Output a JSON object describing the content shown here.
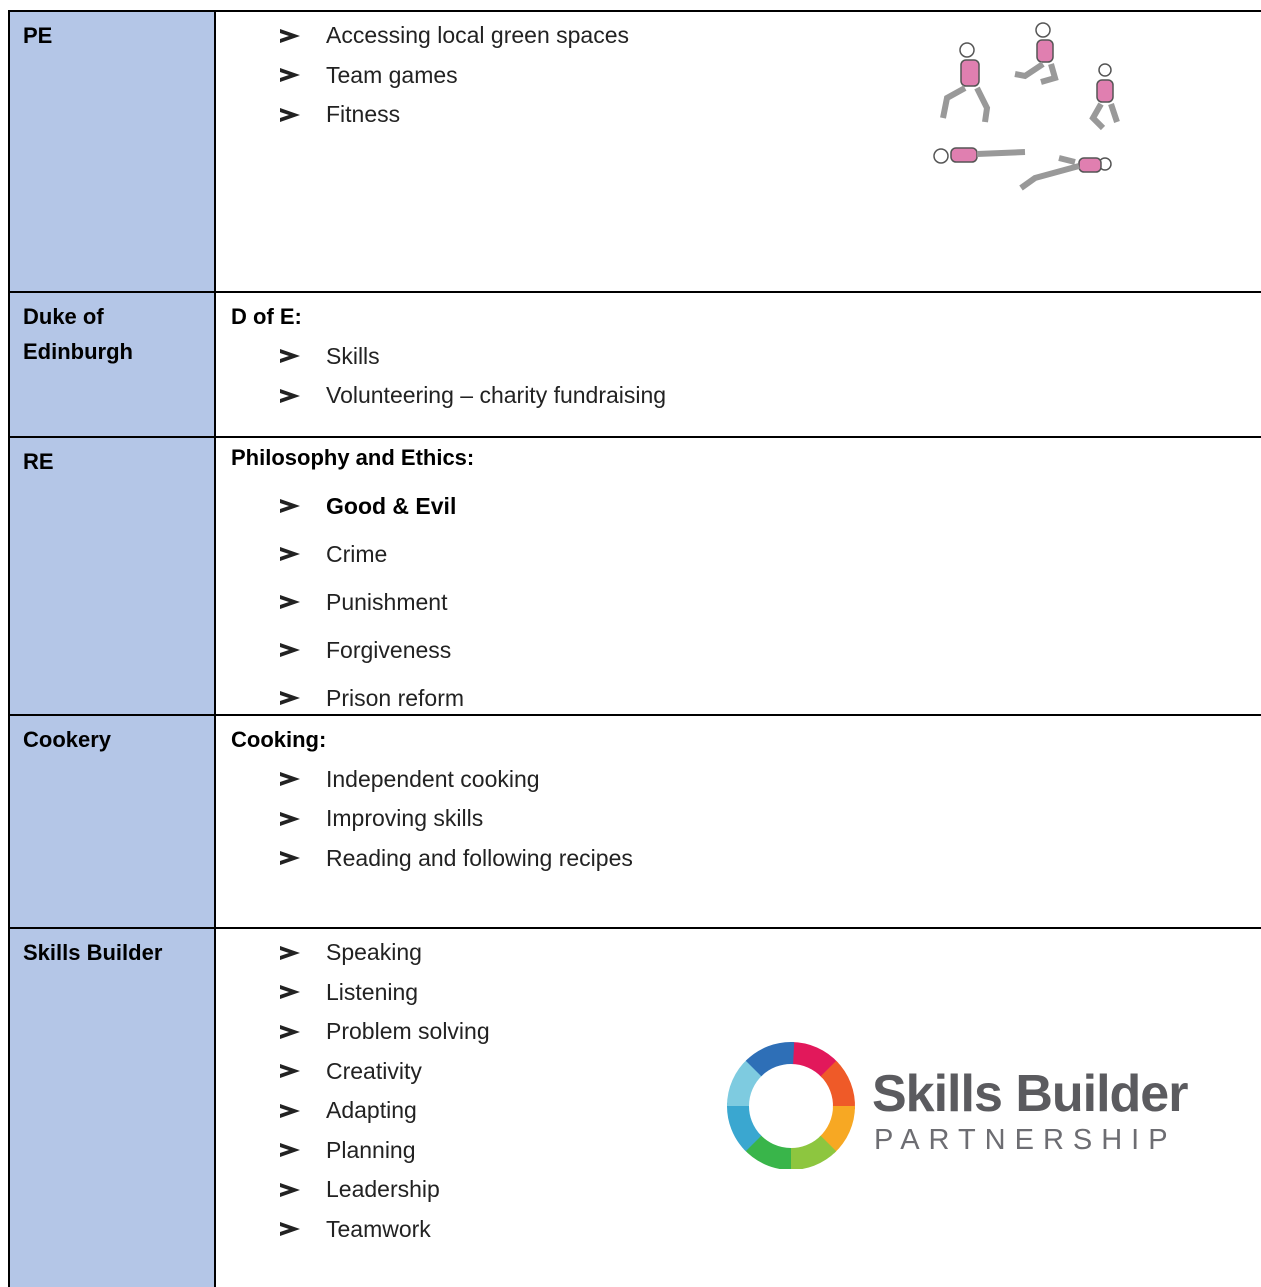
{
  "table": {
    "rows": [
      {
        "subject": "PE",
        "items": [
          "Accessing local green spaces",
          "Team games",
          "Fitness"
        ]
      },
      {
        "subject": "Duke of Edinburgh",
        "heading": "D of E:",
        "items": [
          "Skills",
          "Volunteering – charity fundraising"
        ]
      },
      {
        "subject": "RE",
        "heading": "Philosophy and Ethics:",
        "items": [
          "Good & Evil",
          "Crime",
          "Punishment",
          "Forgiveness",
          "Prison reform"
        ]
      },
      {
        "subject": "Cookery",
        "heading": "Cooking:",
        "items": [
          "Independent cooking",
          "Improving skills",
          "Reading and following recipes"
        ]
      },
      {
        "subject": "Skills Builder",
        "items": [
          "Speaking",
          "Listening",
          "Problem solving",
          "Creativity",
          "Adapting",
          "Planning",
          "Leadership",
          "Teamwork"
        ],
        "logo": {
          "name": "Skills Builder",
          "tagline": "PARTNERSHIP"
        }
      }
    ]
  }
}
